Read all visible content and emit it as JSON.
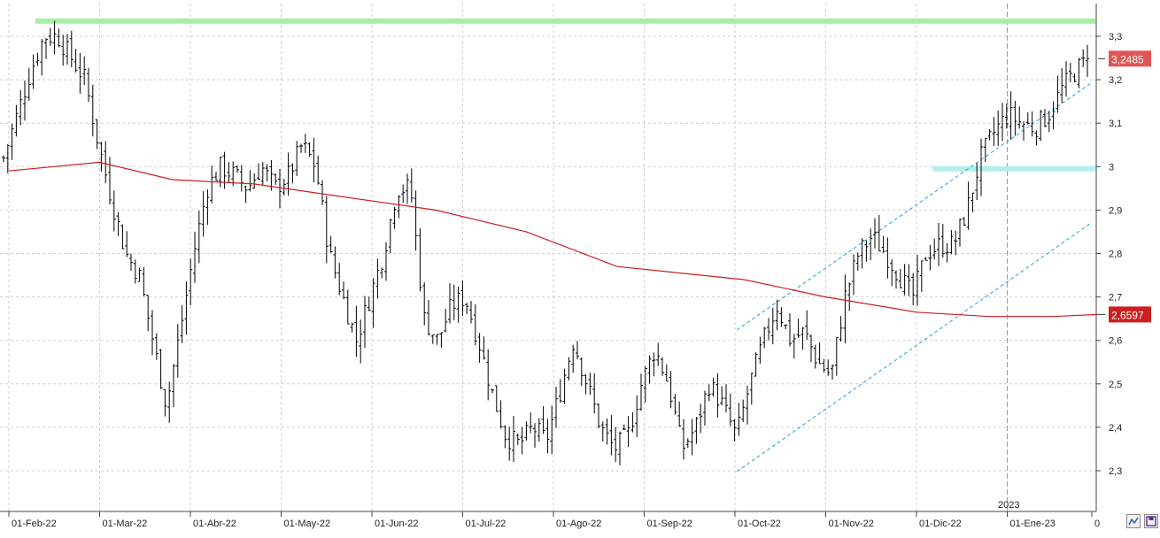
{
  "chart_data": {
    "type": "ohlc-bar",
    "title": "",
    "xlabel": "",
    "ylabel": "",
    "ylim": [
      2.2,
      3.4
    ],
    "y_ticks": [
      "2,3",
      "2,4",
      "2,5",
      "2,6",
      "2,7",
      "2,8",
      "2,9",
      "3",
      "3,1",
      "3,2",
      "3,3"
    ],
    "x_ticks": [
      "01-Feb-22",
      "01-Mar-22",
      "01-Abr-22",
      "01-May-22",
      "01-Jun-22",
      "01-Jul-22",
      "01-Ago-22",
      "01-Sep-22",
      "01-Oct-22",
      "01-Nov-22",
      "01-Dic-22",
      "01-Ene-23",
      "0"
    ],
    "year_marker": "2023",
    "last_price_label": "3,2485",
    "moving_average_label": "2,6597",
    "grid": true,
    "colors": {
      "price_bars": "#000000",
      "moving_average": "#cc1f1f",
      "channel": "#1fa3d6",
      "resistance": "#a6f0a6",
      "support": "#b3f0ec",
      "price_badge": "#e05555"
    },
    "price_anchors": [
      [
        0,
        3.02
      ],
      [
        1,
        3.12
      ],
      [
        2,
        3.22
      ],
      [
        3,
        3.3
      ],
      [
        4,
        3.3
      ],
      [
        5,
        3.25
      ],
      [
        6,
        3.2
      ],
      [
        7,
        3.05
      ],
      [
        8,
        2.92
      ],
      [
        9,
        2.8
      ],
      [
        10,
        2.75
      ],
      [
        11,
        2.6
      ],
      [
        12,
        2.45
      ],
      [
        13,
        2.62
      ],
      [
        14,
        2.8
      ],
      [
        15,
        2.95
      ],
      [
        16,
        3.0
      ],
      [
        17,
        2.98
      ],
      [
        18,
        2.95
      ],
      [
        19,
        3.0
      ],
      [
        20,
        2.95
      ],
      [
        21,
        2.98
      ],
      [
        22,
        3.05
      ],
      [
        23,
        3.0
      ],
      [
        24,
        2.8
      ],
      [
        25,
        2.7
      ],
      [
        26,
        2.6
      ],
      [
        27,
        2.7
      ],
      [
        28,
        2.8
      ],
      [
        29,
        2.95
      ],
      [
        30,
        2.95
      ],
      [
        31,
        2.65
      ],
      [
        32,
        2.6
      ],
      [
        33,
        2.68
      ],
      [
        34,
        2.7
      ],
      [
        35,
        2.6
      ],
      [
        36,
        2.48
      ],
      [
        37,
        2.38
      ],
      [
        38,
        2.36
      ],
      [
        39,
        2.4
      ],
      [
        40,
        2.37
      ],
      [
        41,
        2.48
      ],
      [
        42,
        2.6
      ],
      [
        43,
        2.5
      ],
      [
        44,
        2.4
      ],
      [
        45,
        2.35
      ],
      [
        46,
        2.38
      ],
      [
        47,
        2.5
      ],
      [
        48,
        2.58
      ],
      [
        49,
        2.5
      ],
      [
        50,
        2.35
      ],
      [
        51,
        2.4
      ],
      [
        52,
        2.5
      ],
      [
        53,
        2.45
      ],
      [
        54,
        2.38
      ],
      [
        55,
        2.5
      ],
      [
        56,
        2.6
      ],
      [
        57,
        2.68
      ],
      [
        58,
        2.6
      ],
      [
        59,
        2.62
      ],
      [
        60,
        2.55
      ],
      [
        61,
        2.52
      ],
      [
        62,
        2.7
      ],
      [
        63,
        2.8
      ],
      [
        64,
        2.84
      ],
      [
        65,
        2.8
      ],
      [
        66,
        2.75
      ],
      [
        67,
        2.7
      ],
      [
        68,
        2.8
      ],
      [
        69,
        2.82
      ],
      [
        70,
        2.82
      ],
      [
        71,
        2.9
      ],
      [
        72,
        3.02
      ],
      [
        73,
        3.08
      ],
      [
        74,
        3.12
      ],
      [
        75,
        3.1
      ],
      [
        76,
        3.09
      ],
      [
        77,
        3.12
      ],
      [
        78,
        3.18
      ],
      [
        79,
        3.22
      ],
      [
        80,
        3.25
      ]
    ]
  },
  "toolbar": {
    "indicator_icon": "zigzag-icon",
    "save_icon": "disk-icon"
  }
}
